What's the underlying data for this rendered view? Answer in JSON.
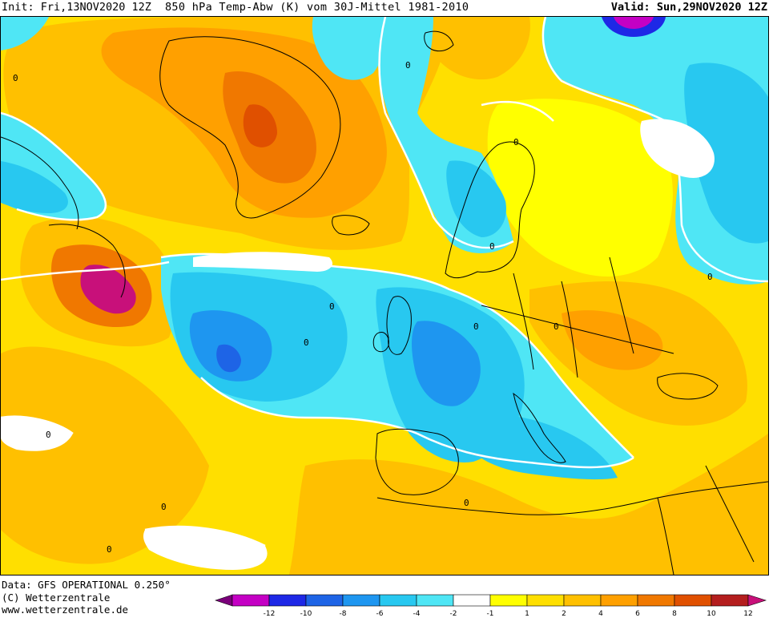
{
  "header": {
    "init": "Init: Fri,13NOV2020 12Z",
    "title": "850 hPa Temp-Abw (K) vom 30J-Mittel 1981-2010",
    "valid": "Valid: Sun,29NOV2020 12Z"
  },
  "footer": {
    "data_line": "Data: GFS OPERATIONAL 0.250°",
    "copyright": "(C) Wetterzentrale",
    "url": "www.wetterzentrale.de"
  },
  "map": {
    "contour_label": "0",
    "colors": {
      "m12": "#7a007a",
      "m10": "#c400c4",
      "m8": "#1e28e6",
      "m6": "#1e64e6",
      "m4": "#1e96f0",
      "m2": "#28c8f0",
      "m1": "#4fe6f5",
      "neutral": "#ffffff",
      "p1": "#ffff00",
      "p2": "#ffdf00",
      "p4": "#ffc000",
      "p6": "#ffa000",
      "p8": "#f07800",
      "p10": "#e05000",
      "p12": "#b41e1e",
      "p14": "#c8107a"
    }
  },
  "legend": {
    "ticks": [
      "-12",
      "-10",
      "-8",
      "-6",
      "-4",
      "-2",
      "-1",
      "1",
      "2",
      "4",
      "6",
      "8",
      "10",
      "12"
    ],
    "colors": [
      "#7a007a",
      "#c400c4",
      "#1e28e6",
      "#1e64e6",
      "#1e96f0",
      "#28c8f0",
      "#4fe6f5",
      "#ffffff",
      "#ffff00",
      "#ffdf00",
      "#ffc000",
      "#ffa000",
      "#f07800",
      "#e05000",
      "#b41e1e",
      "#c8107a"
    ]
  }
}
